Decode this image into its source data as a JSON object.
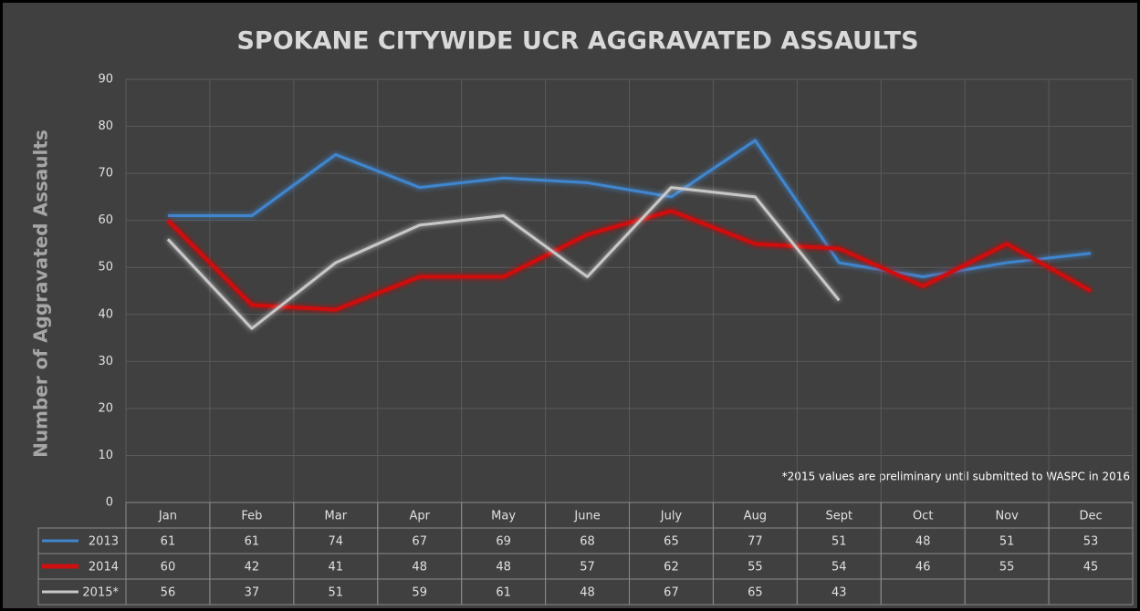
{
  "chart_data": {
    "type": "line",
    "title": "SPOKANE CITYWIDE UCR AGGRAVATED ASSAULTS",
    "y_label": "Number of Aggravated Assaults",
    "annotation": "*2015 values are preliminary until submitted to WASPC in 2016",
    "categories": [
      "Jan",
      "Feb",
      "Mar",
      "Apr",
      "May",
      "June",
      "July",
      "Aug",
      "Sept",
      "Oct",
      "Nov",
      "Dec"
    ],
    "series": [
      {
        "name": "2013",
        "color": "#3f86cf",
        "values": [
          61,
          61,
          74,
          67,
          69,
          68,
          65,
          77,
          51,
          48,
          51,
          53
        ]
      },
      {
        "name": "2014",
        "color": "#d01010",
        "values": [
          60,
          42,
          41,
          48,
          48,
          57,
          62,
          55,
          54,
          46,
          55,
          45
        ]
      },
      {
        "name": "2015*",
        "color": "#c8c8c8",
        "values": [
          56,
          37,
          51,
          59,
          61,
          48,
          67,
          65,
          43,
          null,
          null,
          null
        ]
      }
    ],
    "ylim": [
      0,
      90
    ],
    "yticks": [
      0,
      10,
      20,
      30,
      40,
      50,
      60,
      70,
      80,
      90
    ],
    "grid": true,
    "data_table": true
  }
}
